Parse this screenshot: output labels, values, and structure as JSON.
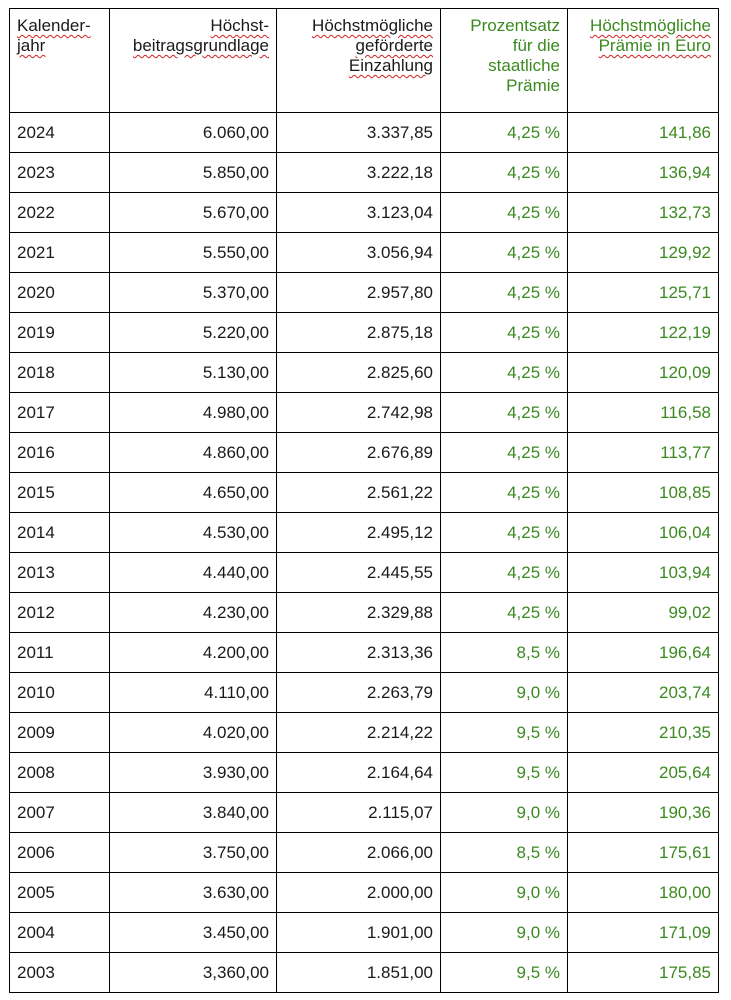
{
  "table": {
    "headers": [
      "Kalender-\njahr",
      "Höchst-\nbeitragsgrundlage",
      "Höchstmögliche\ngeförderte\nEinzahlung",
      "Prozentsatz\nfür die\nstaatliche\nPrämie",
      "Höchstmögliche\nPrämie in Euro"
    ],
    "rows": [
      [
        "2024",
        "6.060,00",
        "3.337,85",
        "4,25 %",
        "141,86"
      ],
      [
        "2023",
        "5.850,00",
        "3.222,18",
        "4,25 %",
        "136,94"
      ],
      [
        "2022",
        "5.670,00",
        "3.123,04",
        "4,25 %",
        "132,73"
      ],
      [
        "2021",
        "5.550,00",
        "3.056,94",
        "4,25 %",
        "129,92"
      ],
      [
        "2020",
        "5.370,00",
        "2.957,80",
        "4,25 %",
        "125,71"
      ],
      [
        "2019",
        "5.220,00",
        "2.875,18",
        "4,25 %",
        "122,19"
      ],
      [
        "2018",
        "5.130,00",
        "2.825,60",
        "4,25 %",
        "120,09"
      ],
      [
        "2017",
        "4.980,00",
        "2.742,98",
        "4,25 %",
        "116,58"
      ],
      [
        "2016",
        "4.860,00",
        "2.676,89",
        "4,25 %",
        "113,77"
      ],
      [
        "2015",
        "4.650,00",
        "2.561,22",
        "4,25 %",
        "108,85"
      ],
      [
        "2014",
        "4.530,00",
        "2.495,12",
        "4,25 %",
        "106,04"
      ],
      [
        "2013",
        "4.440,00",
        "2.445,55",
        "4,25 %",
        "103,94"
      ],
      [
        "2012",
        "4.230,00",
        "2.329,88",
        "4,25 %",
        "99,02"
      ],
      [
        "2011",
        "4.200,00",
        "2.313,36",
        "8,5 %",
        "196,64"
      ],
      [
        "2010",
        "4.110,00",
        "2.263,79",
        "9,0 %",
        "203,74"
      ],
      [
        "2009",
        "4.020,00",
        "2.214,22",
        "9,5 %",
        "210,35"
      ],
      [
        "2008",
        "3.930,00",
        "2.164,64",
        "9,5 %",
        "205,64"
      ],
      [
        "2007",
        "3.840,00",
        "2.115,07",
        "9,0 %",
        "190,36"
      ],
      [
        "2006",
        "3.750,00",
        "2.066,00",
        "8,5 %",
        "175,61"
      ],
      [
        "2005",
        "3.630,00",
        "2.000,00",
        "9,0 %",
        "180,00"
      ],
      [
        "2004",
        "3.450,00",
        "1.901,00",
        "9,0 %",
        "171,09"
      ],
      [
        "2003",
        "3,360,00",
        "1.851,00",
        "9,5 %",
        "175,85"
      ]
    ]
  },
  "colors": {
    "text": "#1a1a1a",
    "green": "#3a8a1f",
    "border": "#000000",
    "spellcheck_underline": "#d22020"
  }
}
